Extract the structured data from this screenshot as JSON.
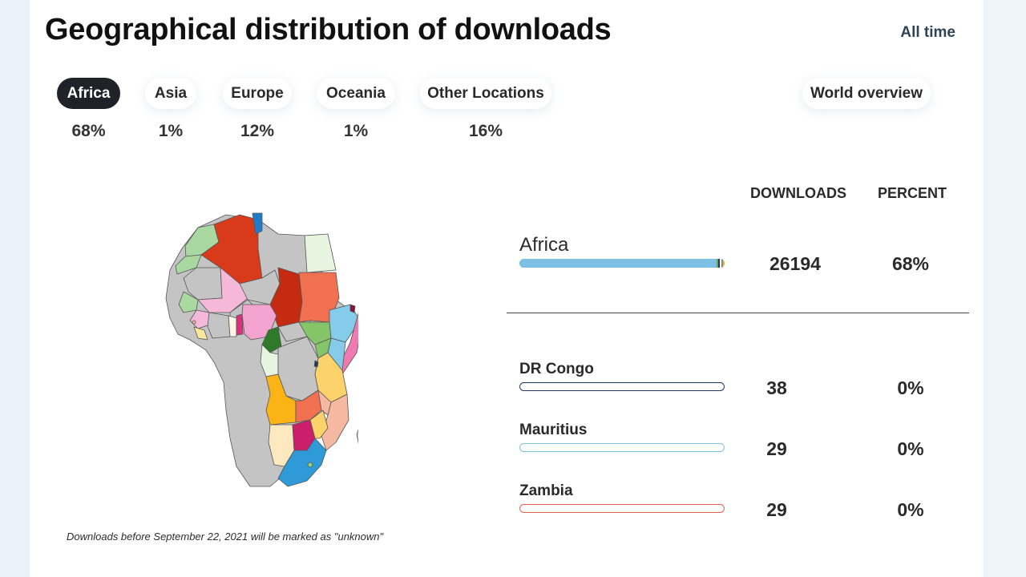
{
  "header": {
    "title": "Geographical distribution of downloads",
    "period_label": "All time"
  },
  "tabs": [
    {
      "label": "Africa",
      "percent": "68%",
      "active": true
    },
    {
      "label": "Asia",
      "percent": "1%"
    },
    {
      "label": "Europe",
      "percent": "12%"
    },
    {
      "label": "Oceania",
      "percent": "1%"
    },
    {
      "label": "Other Locations",
      "percent": "16%"
    }
  ],
  "overview_button": "World overview",
  "table": {
    "col_downloads": "DOWNLOADS",
    "col_percent": "PERCENT",
    "region": {
      "name": "Africa",
      "downloads": "26194",
      "percent": "68%"
    },
    "countries": [
      {
        "name": "DR Congo",
        "downloads": "38",
        "percent": "0%",
        "color": "#1f3a5f"
      },
      {
        "name": "Mauritius",
        "downloads": "29",
        "percent": "0%",
        "color": "#7cc0e6"
      },
      {
        "name": "Zambia",
        "downloads": "29",
        "percent": "0%",
        "color": "#e8604c"
      }
    ]
  },
  "footnote": "Downloads before September 22, 2021 will be marked as \"unknown\"",
  "colors": {
    "active_tab": "#1f2328",
    "region_bar": "#7cc0e6"
  }
}
